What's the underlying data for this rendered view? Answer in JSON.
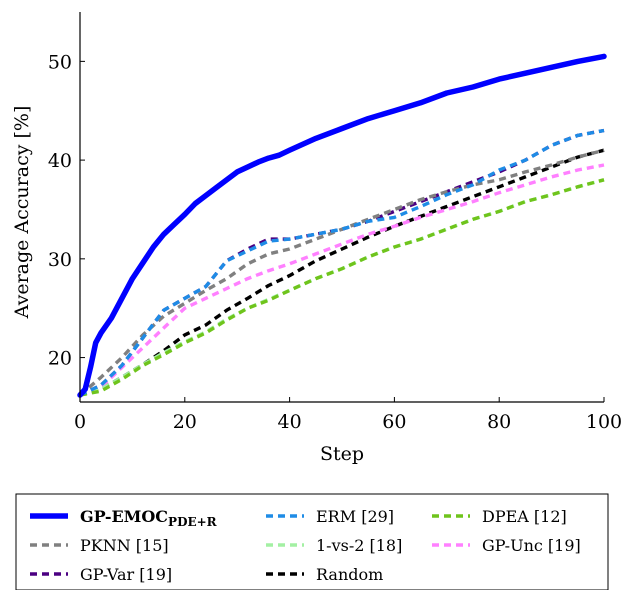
{
  "chart_data": {
    "type": "line",
    "xlabel": "Step",
    "ylabel": "Average Accuracy [%]",
    "xlim": [
      0,
      100
    ],
    "ylim": [
      15.5,
      55
    ],
    "xticks": [
      0,
      20,
      40,
      60,
      80,
      100
    ],
    "yticks": [
      20,
      30,
      40,
      50
    ],
    "grid": false,
    "legend_position": "bottom",
    "series": [
      {
        "name": "GP-EMOC",
        "name_sub": "PDE+R",
        "bold": true,
        "color": "#0000ff",
        "dashed": false,
        "x": [
          0,
          1,
          2,
          3,
          4,
          6,
          8,
          10,
          12,
          14,
          16,
          18,
          20,
          22,
          24,
          26,
          28,
          30,
          32,
          34,
          36,
          38,
          40,
          45,
          50,
          55,
          60,
          65,
          70,
          75,
          80,
          85,
          90,
          95,
          100
        ],
        "y": [
          16.2,
          16.8,
          19,
          21.5,
          22.5,
          24,
          26,
          28,
          29.6,
          31.2,
          32.5,
          33.5,
          34.5,
          35.6,
          36.4,
          37.2,
          38,
          38.8,
          39.3,
          39.8,
          40.2,
          40.5,
          41,
          42.2,
          43.2,
          44.2,
          45,
          45.8,
          46.8,
          47.4,
          48.2,
          48.8,
          49.4,
          50,
          50.5
        ]
      },
      {
        "name": "ERM [29]",
        "color": "#1e8ce6",
        "dashed": true,
        "x": [
          0,
          4,
          8,
          12,
          16,
          20,
          24,
          28,
          32,
          36,
          40,
          45,
          50,
          55,
          60,
          65,
          70,
          75,
          80,
          85,
          90,
          95,
          100
        ],
        "y": [
          16.2,
          17.2,
          19.2,
          22,
          24.8,
          26,
          27.2,
          29.8,
          30.8,
          31.8,
          32,
          32.5,
          33,
          33.8,
          34.2,
          35.3,
          36.5,
          37.5,
          39,
          40,
          41.5,
          42.5,
          43
        ]
      },
      {
        "name": "DPEA [12]",
        "color": "#6fc41c",
        "dashed": true,
        "x": [
          0,
          4,
          8,
          12,
          16,
          20,
          24,
          28,
          32,
          36,
          40,
          45,
          50,
          55,
          60,
          65,
          70,
          75,
          80,
          85,
          90,
          95,
          100
        ],
        "y": [
          16.2,
          16.6,
          17.8,
          19.2,
          20.3,
          21.5,
          22.5,
          23.8,
          25,
          25.8,
          26.8,
          28,
          29,
          30.2,
          31.2,
          32,
          33,
          34,
          34.8,
          35.8,
          36.5,
          37.3,
          38
        ]
      },
      {
        "name": "PKNN [15]",
        "color": "#808080",
        "dashed": true,
        "x": [
          0,
          4,
          8,
          12,
          16,
          20,
          24,
          28,
          32,
          36,
          40,
          45,
          50,
          55,
          60,
          65,
          70,
          75,
          80,
          85,
          90,
          95,
          100
        ],
        "y": [
          16.2,
          18,
          20,
          22.3,
          24.2,
          25.5,
          26.8,
          28,
          29.5,
          30.5,
          31,
          32,
          33,
          34,
          35,
          36,
          36.8,
          37.5,
          38,
          38.8,
          39.5,
          40.3,
          41
        ]
      },
      {
        "name": "1-vs-2 [18]",
        "color": "#a3f0a3",
        "dashed": true,
        "x": [
          0,
          4,
          8,
          12,
          16,
          20,
          24,
          28,
          32,
          36,
          40,
          45,
          50,
          55,
          60,
          65,
          70,
          75,
          80,
          85,
          90,
          95,
          100
        ],
        "y": [
          16.2,
          16.8,
          18,
          19.3,
          20.5,
          21.6,
          22.6,
          23.9,
          25,
          25.9,
          26.8,
          28,
          29,
          30.2,
          31.2,
          32,
          33,
          34,
          34.8,
          35.8,
          36.5,
          37.3,
          38
        ]
      },
      {
        "name": "GP-Unc [19]",
        "color": "#ff80ff",
        "dashed": true,
        "x": [
          0,
          4,
          8,
          12,
          16,
          20,
          24,
          28,
          32,
          36,
          40,
          45,
          50,
          55,
          60,
          65,
          70,
          75,
          80,
          85,
          90,
          95,
          100
        ],
        "y": [
          16.2,
          17,
          19,
          21,
          23,
          25,
          26,
          27,
          28,
          28.8,
          29.5,
          30.5,
          31.5,
          32.5,
          33.3,
          34.2,
          35,
          35.8,
          36.7,
          37.5,
          38.3,
          39,
          39.5
        ]
      },
      {
        "name": "GP-Var [19]",
        "color": "#4b0082",
        "dashed": true,
        "x": [
          0,
          4,
          8,
          12,
          16,
          20,
          24,
          28,
          32,
          36,
          40,
          45,
          50,
          55,
          60,
          65,
          70,
          75,
          80,
          85,
          90,
          95,
          100
        ],
        "y": [
          16.2,
          17.2,
          19.2,
          22,
          24.8,
          26,
          27.2,
          29.8,
          31,
          32,
          32,
          32.5,
          33,
          33.8,
          34.8,
          35.8,
          36.8,
          37.8,
          38.8,
          40,
          41.5,
          42.5,
          43
        ]
      },
      {
        "name": "Random",
        "color": "#000000",
        "dashed": true,
        "x": [
          0,
          4,
          8,
          12,
          16,
          20,
          24,
          28,
          32,
          36,
          40,
          45,
          50,
          55,
          60,
          65,
          70,
          75,
          80,
          85,
          90,
          95,
          100
        ],
        "y": [
          16.2,
          16.8,
          18,
          19.3,
          20.7,
          22.3,
          23.3,
          24.8,
          26,
          27.3,
          28.3,
          29.8,
          31,
          32.2,
          33.3,
          34.3,
          35.3,
          36.3,
          37.3,
          38.3,
          39.3,
          40.3,
          41
        ]
      }
    ]
  }
}
